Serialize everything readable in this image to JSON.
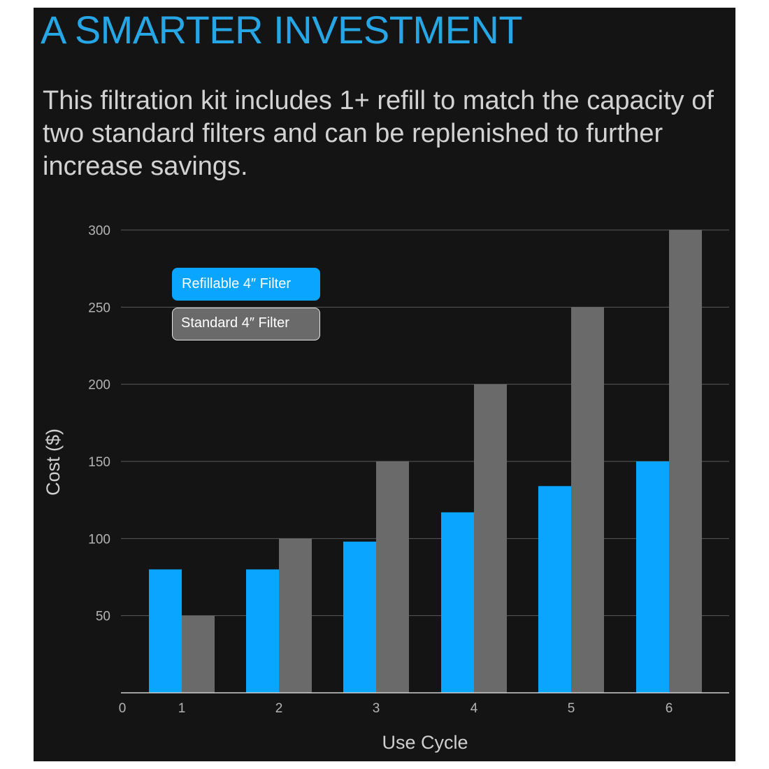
{
  "heading": "A SMARTER INVESTMENT",
  "subtext": "This filtration kit includes 1+ refill to match the capacity of two standard filters and can be replenished to further increase savings.",
  "legend": {
    "refillable_label": "Refillable 4″ Filter",
    "standard_label": "Standard 4″ Filter"
  },
  "colors": {
    "background": "#141414",
    "heading": "#27a6e6",
    "refillable": "#0aa5ff",
    "standard": "#6a6a6a",
    "gridline": "#5a5a5a"
  },
  "chart_data": {
    "type": "bar",
    "xlabel": "Use Cycle",
    "ylabel": "Cost ($)",
    "categories": [
      "1",
      "2",
      "3",
      "4",
      "5",
      "6"
    ],
    "x_origin_label": "0",
    "ylim": [
      0,
      300
    ],
    "yticks": [
      50,
      100,
      150,
      200,
      250,
      300
    ],
    "grid": true,
    "legend_position": "top-left",
    "series": [
      {
        "name": "Refillable 4″ Filter",
        "values": [
          80,
          80,
          98,
          117,
          134,
          150
        ]
      },
      {
        "name": "Standard 4″ Filter",
        "values": [
          50,
          100,
          150,
          200,
          250,
          300
        ]
      }
    ]
  }
}
